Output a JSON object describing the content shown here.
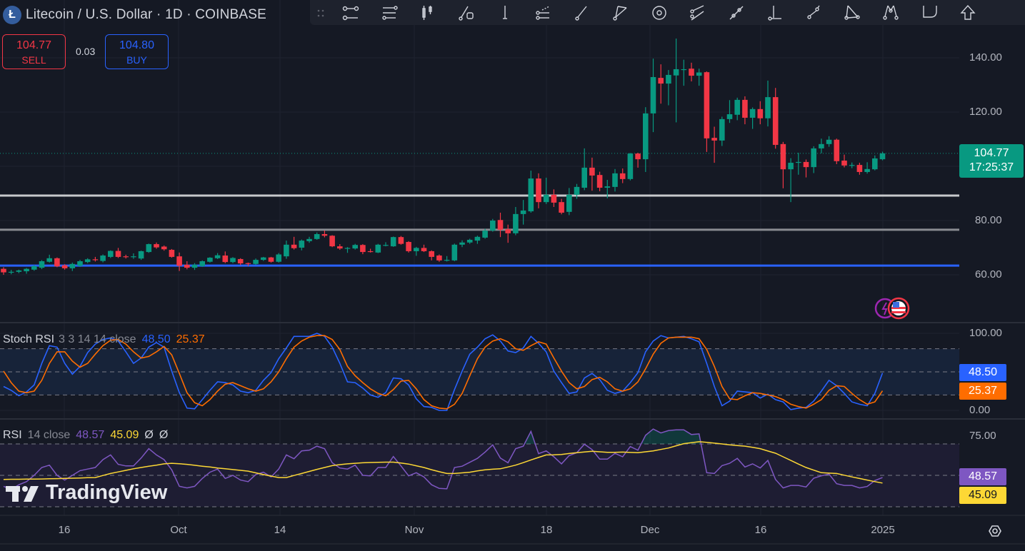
{
  "header": {
    "title": "Litecoin / U.S. Dollar · 1D · COINBASE",
    "logo_letter": "Ł",
    "sell_price": "104.77",
    "sell_label": "SELL",
    "spread": "0.03",
    "buy_price": "104.80",
    "buy_label": "BUY"
  },
  "toolbar": {
    "icons": [
      "drag-handle-icon",
      "trend-channel-icon",
      "parallel-lines-icon",
      "long-short-position-icon",
      "ray-rectangle-icon",
      "vertical-line-icon",
      "fib-retracement-icon",
      "trend-line-icon",
      "pitchfork-fan-icon",
      "circle-target-icon",
      "parallel-channel-icon",
      "extended-line-icon",
      "horizontal-ray-icon",
      "info-line-icon",
      "triangle-pattern-icon",
      "xabcd-pattern-icon",
      "shape-icon",
      "arrow-up-icon"
    ]
  },
  "price_pane": {
    "y_ticks": [
      "140.00",
      "120.00",
      "80.00",
      "60.00"
    ],
    "last_price": "104.77",
    "countdown": "17:25:37"
  },
  "stoch_pane": {
    "name": "Stoch RSI",
    "params": "3 3 14 14 close",
    "k_value": "48.50",
    "d_value": "25.37",
    "y_ticks": [
      "100.00",
      "0.00"
    ]
  },
  "rsi_pane": {
    "name": "RSI",
    "params": "14 close",
    "rsi_value": "48.57",
    "ma_value": "45.09",
    "extra1": "Ø",
    "extra2": "Ø",
    "y_ticks": [
      "75.00"
    ]
  },
  "x_axis": {
    "labels": [
      "16",
      "Oct",
      "14",
      "Nov",
      "18",
      "Dec",
      "16",
      "2025"
    ]
  },
  "watermark": "TradingView",
  "colors": {
    "up": "#089981",
    "down": "#f23645",
    "k": "#2962ff",
    "d": "#ff6d00",
    "rsi": "#7e57c2",
    "rsi_ma": "#fdd835",
    "support_blue": "#2962ff"
  },
  "chart_data": {
    "type": "candlestick",
    "symbol": "Litecoin / U.S. Dollar",
    "interval": "1D",
    "ylim": [
      45,
      152
    ],
    "horizontal_lines": [
      89.2,
      76.6,
      63.4
    ],
    "ohlc": [
      [
        62.2,
        62.8,
        60.0,
        60.9
      ],
      [
        60.9,
        61.8,
        60.2,
        61.1
      ],
      [
        61.1,
        61.9,
        60.6,
        61.6
      ],
      [
        61.3,
        62.5,
        60.4,
        62.2
      ],
      [
        61.9,
        63.6,
        61.5,
        63.2
      ],
      [
        62.6,
        65.4,
        62.1,
        65.0
      ],
      [
        64.8,
        67.4,
        64.5,
        66.1
      ],
      [
        66.1,
        66.4,
        62.8,
        63.1
      ],
      [
        63.5,
        63.9,
        61.9,
        62.4
      ],
      [
        62.4,
        64.5,
        61.4,
        64.0
      ],
      [
        63.3,
        65.5,
        62.9,
        65.0
      ],
      [
        64.7,
        66.1,
        64.3,
        65.7
      ],
      [
        65.7,
        66.6,
        64.9,
        65.4
      ],
      [
        65.1,
        67.5,
        64.6,
        67.1
      ],
      [
        66.6,
        69.0,
        66.2,
        68.8
      ],
      [
        68.8,
        69.9,
        66.2,
        66.6
      ],
      [
        66.8,
        67.4,
        66.0,
        66.7
      ],
      [
        66.6,
        67.9,
        65.9,
        66.8
      ],
      [
        66.0,
        68.9,
        65.5,
        68.7
      ],
      [
        68.4,
        71.5,
        68.1,
        71.3
      ],
      [
        71.3,
        71.9,
        69.6,
        70.1
      ],
      [
        70.4,
        70.8,
        68.9,
        69.4
      ],
      [
        69.2,
        69.5,
        66.3,
        66.6
      ],
      [
        66.8,
        68.2,
        61.4,
        63.3
      ],
      [
        63.7,
        65.0,
        62.0,
        62.6
      ],
      [
        62.6,
        64.3,
        61.8,
        63.7
      ],
      [
        63.2,
        65.3,
        62.9,
        65.0
      ],
      [
        64.8,
        66.5,
        64.5,
        66.3
      ],
      [
        66.1,
        68.0,
        65.8,
        67.2
      ],
      [
        67.1,
        68.6,
        64.3,
        64.7
      ],
      [
        64.7,
        66.5,
        64.3,
        66.2
      ],
      [
        65.8,
        66.1,
        63.6,
        64.2
      ],
      [
        64.3,
        64.5,
        63.2,
        64.0
      ],
      [
        64.0,
        66.0,
        63.6,
        65.5
      ],
      [
        65.5,
        66.6,
        65.1,
        66.4
      ],
      [
        66.4,
        66.6,
        64.5,
        64.8
      ],
      [
        64.8,
        68.0,
        64.5,
        67.5
      ],
      [
        66.8,
        72.6,
        65.9,
        71.1
      ],
      [
        71.1,
        74.0,
        69.3,
        69.8
      ],
      [
        70.0,
        73.0,
        69.0,
        72.6
      ],
      [
        72.4,
        74.0,
        71.8,
        73.2
      ],
      [
        73.2,
        75.6,
        72.9,
        75.0
      ],
      [
        75.0,
        76.3,
        73.8,
        74.4
      ],
      [
        74.4,
        74.6,
        70.2,
        70.5
      ],
      [
        70.5,
        71.3,
        69.2,
        69.7
      ],
      [
        69.9,
        70.2,
        68.1,
        69.9
      ],
      [
        69.7,
        71.4,
        69.3,
        71.0
      ],
      [
        71.0,
        71.3,
        67.6,
        68.4
      ],
      [
        68.7,
        69.6,
        68.2,
        68.5
      ],
      [
        68.2,
        71.4,
        68.0,
        71.1
      ],
      [
        71.0,
        72.0,
        70.5,
        71.0
      ],
      [
        70.5,
        74.1,
        70.3,
        73.9
      ],
      [
        73.9,
        74.3,
        71.1,
        71.4
      ],
      [
        72.1,
        72.4,
        68.2,
        68.7
      ],
      [
        68.7,
        70.3,
        67.0,
        69.9
      ],
      [
        69.9,
        71.1,
        68.4,
        68.7
      ],
      [
        68.7,
        69.0,
        65.3,
        66.6
      ],
      [
        67.1,
        67.5,
        64.8,
        65.3
      ],
      [
        65.3,
        66.9,
        64.9,
        65.5
      ],
      [
        65.3,
        71.5,
        65.0,
        71.1
      ],
      [
        71.1,
        72.7,
        70.2,
        71.9
      ],
      [
        71.9,
        73.3,
        71.4,
        72.9
      ],
      [
        72.6,
        74.4,
        71.4,
        74.0
      ],
      [
        73.7,
        77.0,
        73.3,
        76.3
      ],
      [
        76.3,
        80.6,
        75.9,
        80.0
      ],
      [
        80.2,
        82.9,
        73.9,
        76.6
      ],
      [
        76.8,
        78.5,
        71.8,
        75.3
      ],
      [
        75.3,
        85.0,
        74.6,
        82.4
      ],
      [
        82.4,
        87.6,
        78.5,
        83.7
      ],
      [
        83.4,
        98.4,
        82.9,
        95.5
      ],
      [
        95.5,
        97.4,
        84.5,
        86.8
      ],
      [
        86.8,
        95.8,
        86.1,
        89.5
      ],
      [
        89.5,
        91.5,
        85.0,
        86.6
      ],
      [
        86.8,
        88.0,
        82.3,
        82.9
      ],
      [
        83.2,
        92.0,
        82.0,
        89.5
      ],
      [
        89.5,
        93.5,
        88.0,
        92.4
      ],
      [
        92.1,
        106.6,
        91.2,
        99.5
      ],
      [
        99.5,
        103.2,
        91.0,
        96.6
      ],
      [
        96.8,
        98.0,
        90.8,
        92.1
      ],
      [
        92.1,
        95.0,
        88.2,
        92.6
      ],
      [
        92.4,
        99.0,
        90.7,
        97.4
      ],
      [
        97.4,
        99.2,
        93.8,
        95.3
      ],
      [
        95.3,
        104.9,
        94.8,
        104.7
      ],
      [
        104.7,
        105.0,
        99.5,
        102.6
      ],
      [
        102.6,
        121.8,
        97.9,
        119.5
      ],
      [
        119.5,
        139.7,
        112.6,
        132.9
      ],
      [
        132.6,
        137.6,
        123.1,
        130.5
      ],
      [
        130.5,
        135.5,
        122.5,
        133.7
      ],
      [
        133.5,
        147.1,
        116.2,
        135.8
      ],
      [
        135.8,
        139.3,
        129.7,
        135.8
      ],
      [
        136.0,
        138.2,
        131.3,
        133.4
      ],
      [
        133.4,
        136.0,
        129.7,
        134.6
      ],
      [
        134.7,
        135.0,
        105.3,
        110.3
      ],
      [
        110.5,
        114.6,
        101.3,
        109.5
      ],
      [
        109.5,
        118.3,
        107.5,
        117.4
      ],
      [
        117.4,
        124.4,
        116.0,
        119.2
      ],
      [
        119.0,
        125.3,
        117.0,
        124.5
      ],
      [
        124.5,
        125.8,
        115.5,
        117.9
      ],
      [
        117.9,
        121.7,
        113.8,
        121.1
      ],
      [
        121.1,
        124.0,
        115.5,
        117.7
      ],
      [
        117.7,
        131.6,
        114.7,
        125.5
      ],
      [
        125.5,
        128.9,
        106.5,
        107.9
      ],
      [
        108.2,
        109.0,
        91.9,
        98.9
      ],
      [
        98.9,
        103.0,
        86.8,
        101.3
      ],
      [
        101.6,
        105.0,
        96.9,
        101.6
      ],
      [
        101.6,
        102.5,
        95.9,
        99.7
      ],
      [
        99.7,
        107.4,
        97.5,
        106.6
      ],
      [
        106.6,
        110.2,
        104.8,
        108.2
      ],
      [
        108.2,
        111.1,
        107.2,
        109.8
      ],
      [
        109.8,
        110.2,
        100.8,
        101.9
      ],
      [
        102.1,
        104.3,
        99.6,
        100.3
      ],
      [
        100.5,
        101.4,
        99.3,
        100.5
      ],
      [
        100.5,
        101.3,
        96.9,
        97.9
      ],
      [
        97.9,
        101.5,
        97.3,
        99.0
      ],
      [
        98.9,
        104.0,
        98.5,
        102.9
      ],
      [
        102.6,
        105.4,
        102.2,
        104.77
      ]
    ],
    "stoch_rsi": {
      "ylim": [
        0,
        100
      ],
      "bands": [
        80,
        50,
        20
      ],
      "k": [
        31,
        26,
        19,
        24,
        33,
        61,
        84,
        82,
        61,
        47,
        57,
        75,
        86,
        92,
        94,
        90,
        76,
        61,
        68,
        82,
        88,
        82,
        51,
        23,
        3,
        2,
        14,
        26,
        37,
        36,
        33,
        25,
        23,
        26,
        39,
        49,
        67,
        81,
        96,
        96,
        96,
        100,
        96,
        82,
        61,
        37,
        36,
        29,
        20,
        17,
        23,
        42,
        41,
        33,
        15,
        5,
        4,
        0,
        0,
        27,
        51,
        73,
        82,
        93,
        98,
        90,
        77,
        75,
        81,
        96,
        87,
        76,
        51,
        36,
        22,
        24,
        42,
        48,
        40,
        26,
        22,
        25,
        36,
        49,
        76,
        90,
        97,
        94,
        95,
        96,
        93,
        89,
        61,
        31,
        6,
        12,
        25,
        24,
        23,
        16,
        21,
        14,
        11,
        1,
        3,
        4,
        12,
        25,
        39,
        32,
        22,
        11,
        8,
        6,
        22,
        48.5
      ],
      "d": [
        51,
        36,
        25,
        23,
        25,
        39,
        61,
        76,
        76,
        64,
        56,
        61,
        73,
        84,
        91,
        92,
        86,
        76,
        68,
        70,
        76,
        83,
        72,
        48,
        23,
        10,
        6,
        14,
        25,
        34,
        36,
        32,
        28,
        25,
        28,
        37,
        50,
        67,
        82,
        90,
        95,
        97,
        97,
        92,
        79,
        57,
        45,
        36,
        28,
        22,
        19,
        27,
        38,
        39,
        28,
        14,
        6,
        3,
        2,
        8,
        22,
        45,
        67,
        82,
        90,
        93,
        89,
        80,
        78,
        84,
        89,
        86,
        68,
        51,
        36,
        28,
        31,
        40,
        43,
        37,
        28,
        25,
        28,
        37,
        54,
        73,
        87,
        94,
        95,
        95,
        95,
        93,
        79,
        57,
        31,
        15,
        14,
        19,
        23,
        22,
        20,
        18,
        14,
        8,
        5,
        3,
        8,
        14,
        26,
        32,
        31,
        22,
        14,
        8,
        11,
        25.37
      ]
    },
    "rsi": {
      "ylim": [
        25,
        80
      ],
      "bands": [
        70,
        50,
        30
      ],
      "rsi": [
        43,
        41,
        44,
        46,
        50,
        55,
        56.5,
        50,
        47,
        50,
        53,
        54,
        55,
        60,
        63,
        57,
        56,
        56,
        61,
        67,
        63,
        60,
        53.5,
        43,
        42,
        43,
        48,
        52,
        54,
        48,
        50,
        47,
        46,
        50.5,
        52,
        49,
        54,
        63,
        60.6,
        65.6,
        66,
        68.6,
        67,
        58,
        54.7,
        54,
        56.5,
        50,
        49.7,
        55,
        55,
        62,
        56,
        49.7,
        51.7,
        49,
        44,
        41.7,
        41.4,
        55,
        55.8,
        58.3,
        60.8,
        64.8,
        69.4,
        61,
        58,
        67,
        68.6,
        78,
        63.8,
        65.6,
        61.8,
        57.3,
        62.6,
        64.4,
        69.8,
        66.4,
        60.3,
        60.3,
        64,
        61.8,
        68.3,
        66,
        75.5,
        79.5,
        77,
        78.5,
        79,
        79,
        76,
        76.4,
        51.7,
        51.2,
        56.2,
        57.7,
        60.8,
        55.3,
        57.3,
        54.7,
        59.5,
        47.4,
        42,
        43.6,
        43.6,
        42.6,
        48.2,
        49.7,
        50.8,
        44.7,
        43.6,
        43.6,
        42,
        42.9,
        46.7,
        48.57
      ],
      "ma": [
        47.4,
        47.5,
        47.5,
        47.6,
        47.6,
        47.7,
        47.8,
        47.9,
        48.1,
        48.2,
        48.3,
        48.5,
        48.6,
        49.9,
        51.2,
        52.2,
        53.2,
        54.2,
        55.0,
        55.8,
        56.5,
        57.3,
        57.7,
        57.4,
        57.0,
        56.4,
        55.8,
        55.3,
        54.7,
        54.2,
        53.7,
        53.2,
        52.7,
        51.6,
        50.5,
        49.5,
        48.6,
        48.6,
        49.9,
        51.2,
        52.5,
        53.8,
        55.0,
        56.2,
        56.8,
        57.3,
        57.7,
        58.0,
        58.2,
        58.3,
        58.4,
        58.4,
        57.8,
        57.2,
        56.1,
        55.0,
        53.6,
        52.3,
        51.2,
        51.2,
        51.6,
        52.0,
        52.8,
        53.5,
        53.9,
        54.2,
        55.3,
        56.5,
        58.1,
        59.8,
        61.4,
        63.0,
        63.1,
        63.3,
        63.9,
        64.4,
        64.9,
        65.3,
        65.0,
        64.7,
        64.7,
        64.8,
        64.6,
        64.4,
        65.0,
        65.6,
        66.5,
        67.4,
        68.8,
        70.2,
        70.8,
        71.4,
        71.0,
        70.5,
        70.0,
        69.4,
        69.0,
        68.6,
        67.8,
        67.0,
        65.5,
        64.1,
        61.8,
        59.5,
        57.2,
        55.0,
        53.3,
        51.7,
        51.4,
        51.2,
        50.1,
        49.0,
        48.0,
        47.0,
        46.0,
        45.09
      ]
    }
  }
}
